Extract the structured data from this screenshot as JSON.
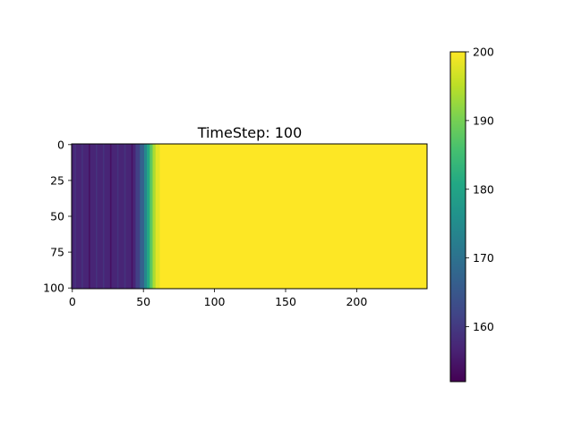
{
  "chart_data": {
    "type": "heatmap",
    "title": "TimeStep: 100",
    "xlabel": "",
    "ylabel": "",
    "grid": false,
    "columns": 250,
    "rows": 101,
    "xlim": [
      0,
      249
    ],
    "ylim": [
      100,
      0
    ],
    "x_ticks": [
      0,
      50,
      100,
      150,
      200
    ],
    "y_ticks": [
      0,
      25,
      50,
      75,
      100
    ],
    "colormap": "viridis",
    "color_range": [
      152,
      200
    ],
    "colorbar_ticks": [
      160,
      170,
      180,
      190,
      200
    ],
    "column_values": [
      {
        "from": 0,
        "to": 45,
        "value": 157
      },
      {
        "from": 45,
        "to": 48,
        "value": 161
      },
      {
        "from": 48,
        "to": 51,
        "value": 167
      },
      {
        "from": 51,
        "to": 53,
        "value": 174
      },
      {
        "from": 53,
        "to": 55,
        "value": 181
      },
      {
        "from": 55,
        "to": 57,
        "value": 188
      },
      {
        "from": 57,
        "to": 59,
        "value": 194
      },
      {
        "from": 59,
        "to": 62,
        "value": 198
      },
      {
        "from": 62,
        "to": 249,
        "value": 200
      }
    ]
  }
}
